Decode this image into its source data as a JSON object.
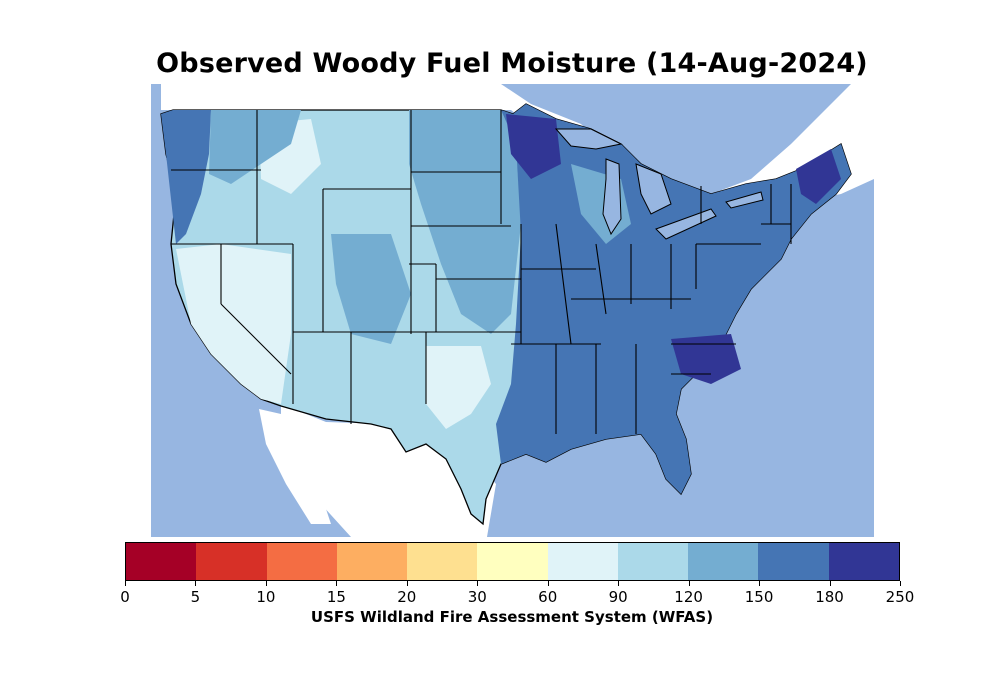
{
  "title": "Observed Woody Fuel Moisture (14-Aug-2024)",
  "colorbar": {
    "label": "USFS Wildland Fire Assessment System (WFAS)",
    "ticks": [
      "0",
      "5",
      "10",
      "15",
      "20",
      "30",
      "60",
      "90",
      "120",
      "150",
      "180",
      "250"
    ],
    "colors": [
      "#a50026",
      "#d73027",
      "#f46d43",
      "#fdae61",
      "#fee090",
      "#ffffbf",
      "#e0f3f8",
      "#abd9e9",
      "#74add1",
      "#4575b4",
      "#313695"
    ]
  },
  "map": {
    "region": "Contiguous United States",
    "water_color": "#97b6e1",
    "land_outside_color": "#ffffff"
  }
}
